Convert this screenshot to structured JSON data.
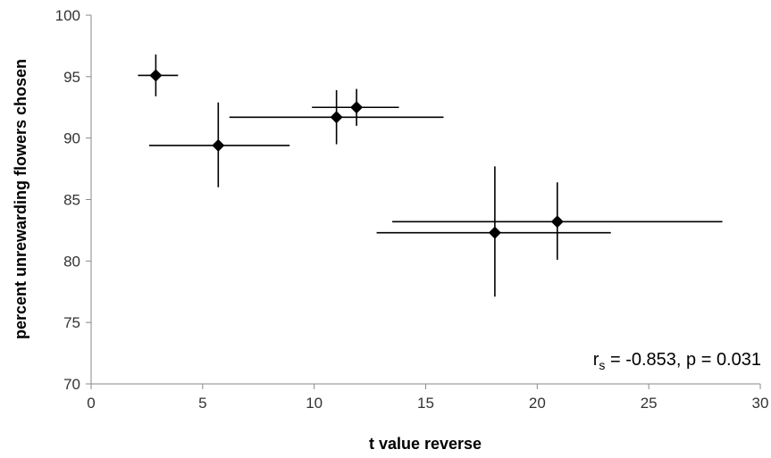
{
  "chart_data": {
    "type": "scatter",
    "xlabel": "t value reverse",
    "ylabel": "percent unrewarding flowers chosen",
    "xlim": [
      0,
      30
    ],
    "ylim": [
      70,
      100
    ],
    "xticks": [
      0,
      5,
      10,
      15,
      20,
      25,
      30
    ],
    "yticks": [
      70,
      75,
      80,
      85,
      90,
      95,
      100
    ],
    "grid": false,
    "marker": "diamond",
    "marker_color": "#000000",
    "error_bars": true,
    "points": [
      {
        "x": 2.9,
        "y": 95.1,
        "x_err": [
          2.1,
          3.9
        ],
        "y_err": [
          93.4,
          96.8
        ]
      },
      {
        "x": 5.7,
        "y": 89.4,
        "x_err": [
          2.6,
          8.9
        ],
        "y_err": [
          86.0,
          92.9
        ]
      },
      {
        "x": 11.0,
        "y": 91.7,
        "x_err": [
          6.2,
          15.8
        ],
        "y_err": [
          89.5,
          93.9
        ]
      },
      {
        "x": 11.9,
        "y": 92.5,
        "x_err": [
          9.9,
          13.8
        ],
        "y_err": [
          91.0,
          94.0
        ]
      },
      {
        "x": 18.1,
        "y": 82.3,
        "x_err": [
          12.8,
          23.3
        ],
        "y_err": [
          77.1,
          87.7
        ]
      },
      {
        "x": 20.9,
        "y": 83.2,
        "x_err": [
          13.5,
          28.3
        ],
        "y_err": [
          80.1,
          86.4
        ]
      }
    ],
    "annotation": {
      "symbol": "r",
      "subscript": "s",
      "text": " = -0.853, p = 0.031"
    }
  }
}
